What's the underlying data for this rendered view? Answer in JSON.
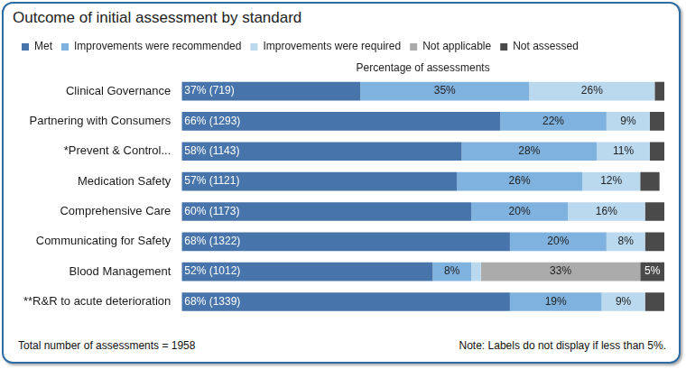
{
  "chart_data": {
    "type": "bar",
    "title": "Outcome of initial assessment by standard",
    "x_label": "Percentage of assessments",
    "orientation": "horizontal",
    "stacked": true,
    "data_labels": true,
    "grid": false,
    "legend": "top-left",
    "tick_labels": "y",
    "xlim": [
      0,
      100
    ],
    "categories": [
      "Clinical Governance",
      "Partnering with Consumers",
      "*Prevent & Control...",
      "Medication Safety",
      "Comprehensive Care",
      "Communicating for Safety",
      "Blood Management",
      "**R&R to acute deterioration"
    ],
    "series": [
      {
        "name": "Met",
        "color": "#4774aa",
        "values": [
          37,
          66,
          58,
          57,
          60,
          68,
          52,
          68
        ],
        "value_labels": [
          "37% (719)",
          "66% (1293)",
          "58% (1143)",
          "57% (1121)",
          "60% (1173)",
          "68% (1322)",
          "52% (1012)",
          "68% (1339)"
        ]
      },
      {
        "name": "Improvements were recommended",
        "color": "#7fb2de",
        "values": [
          35,
          22,
          28,
          26,
          20,
          20,
          8,
          19
        ],
        "value_labels": [
          "35%",
          "22%",
          "28%",
          "26%",
          "20%",
          "20%",
          "8%",
          "19%"
        ]
      },
      {
        "name": "Improvements were required",
        "color": "#bad9ef",
        "values": [
          26,
          9,
          11,
          12,
          16,
          8,
          2,
          9
        ],
        "value_labels": [
          "26%",
          "9%",
          "11%",
          "12%",
          "16%",
          "8%",
          null,
          "9%"
        ]
      },
      {
        "name": "Not applicable",
        "color": "#ababab",
        "values": [
          0,
          0,
          0,
          0,
          0,
          0,
          33,
          0
        ],
        "value_labels": [
          null,
          null,
          null,
          null,
          null,
          null,
          "33%",
          null
        ]
      },
      {
        "name": "Not assessed",
        "color": "#4a4a4a",
        "values": [
          2,
          3,
          3,
          4,
          4,
          4,
          5,
          4
        ],
        "value_labels": [
          null,
          null,
          null,
          null,
          null,
          null,
          "5%",
          null
        ]
      }
    ],
    "annotations": [
      "Total number of assessments = 1958",
      "Note: Labels do not display if less than 5%."
    ]
  }
}
